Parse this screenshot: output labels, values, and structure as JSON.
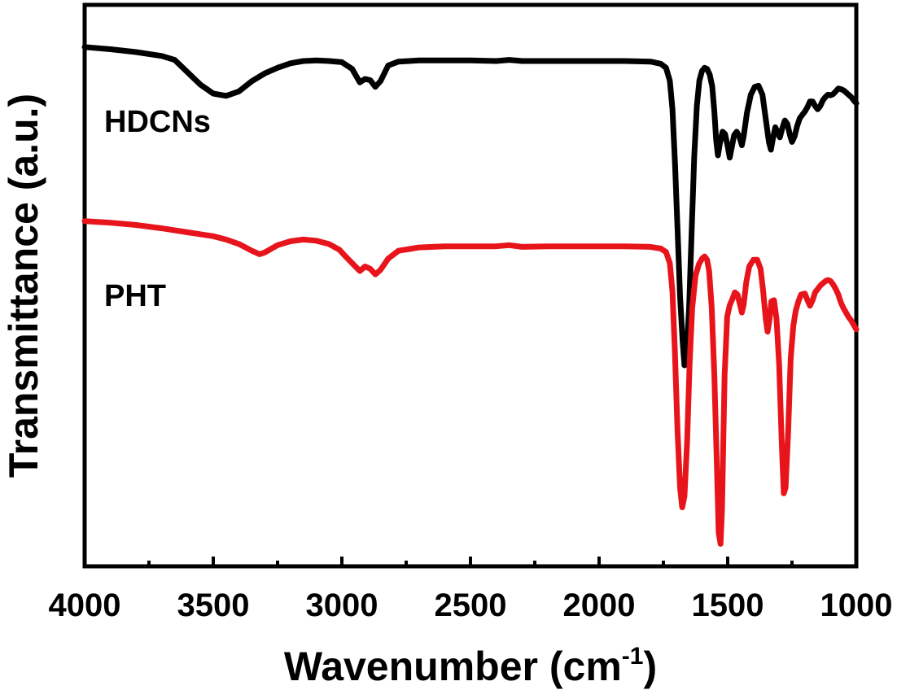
{
  "chart_data": {
    "type": "line",
    "title": "",
    "xlabel": "Wavenumber (cm",
    "xlabel_sup": "-1",
    "xlabel_close": ")",
    "ylabel": "Transmittance (a.u.)",
    "xlim": [
      4000,
      1000
    ],
    "ylim": [
      0,
      100
    ],
    "x_ticks": [
      4000,
      3500,
      3000,
      2500,
      2000,
      1500,
      1000
    ],
    "x_tick_labels": [
      "4000",
      "3500",
      "3000",
      "2500",
      "2000",
      "1500",
      "1000"
    ],
    "y_ticks_shown": false,
    "series": [
      {
        "name": "HDCNs",
        "color": "#000000",
        "points": [
          [
            4000,
            92.5
          ],
          [
            3900,
            92.1
          ],
          [
            3800,
            91.6
          ],
          [
            3700,
            90.9
          ],
          [
            3650,
            90.2
          ],
          [
            3600,
            88.0
          ],
          [
            3550,
            85.8
          ],
          [
            3500,
            84.2
          ],
          [
            3450,
            83.8
          ],
          [
            3400,
            84.6
          ],
          [
            3350,
            86.4
          ],
          [
            3300,
            87.8
          ],
          [
            3250,
            88.8
          ],
          [
            3200,
            89.6
          ],
          [
            3150,
            90.0
          ],
          [
            3100,
            90.1
          ],
          [
            3050,
            90.0
          ],
          [
            3000,
            89.8
          ],
          [
            2960,
            88.6
          ],
          [
            2930,
            86.2
          ],
          [
            2910,
            86.8
          ],
          [
            2890,
            86.6
          ],
          [
            2870,
            85.4
          ],
          [
            2850,
            86.4
          ],
          [
            2820,
            89.2
          ],
          [
            2780,
            89.9
          ],
          [
            2700,
            90.1
          ],
          [
            2600,
            90.1
          ],
          [
            2500,
            90.1
          ],
          [
            2400,
            90.0
          ],
          [
            2350,
            90.2
          ],
          [
            2300,
            90.0
          ],
          [
            2200,
            90.0
          ],
          [
            2100,
            90.0
          ],
          [
            2000,
            90.0
          ],
          [
            1900,
            90.0
          ],
          [
            1800,
            89.9
          ],
          [
            1760,
            89.5
          ],
          [
            1740,
            88.8
          ],
          [
            1725,
            86.5
          ],
          [
            1715,
            81.5
          ],
          [
            1705,
            72.0
          ],
          [
            1695,
            60.0
          ],
          [
            1685,
            48.0
          ],
          [
            1675,
            40.0
          ],
          [
            1668,
            35.8
          ],
          [
            1660,
            37.5
          ],
          [
            1650,
            46.0
          ],
          [
            1640,
            60.0
          ],
          [
            1630,
            73.0
          ],
          [
            1620,
            82.0
          ],
          [
            1610,
            86.5
          ],
          [
            1600,
            88.2
          ],
          [
            1590,
            88.8
          ],
          [
            1580,
            88.6
          ],
          [
            1570,
            87.6
          ],
          [
            1560,
            85.5
          ],
          [
            1552,
            81.0
          ],
          [
            1545,
            76.0
          ],
          [
            1538,
            73.2
          ],
          [
            1530,
            75.4
          ],
          [
            1520,
            77.4
          ],
          [
            1510,
            77.0
          ],
          [
            1500,
            74.8
          ],
          [
            1492,
            72.8
          ],
          [
            1485,
            74.4
          ],
          [
            1475,
            76.8
          ],
          [
            1465,
            77.4
          ],
          [
            1455,
            76.6
          ],
          [
            1445,
            75.0
          ],
          [
            1438,
            76.6
          ],
          [
            1425,
            80.8
          ],
          [
            1410,
            84.0
          ],
          [
            1395,
            85.4
          ],
          [
            1380,
            85.6
          ],
          [
            1365,
            84.0
          ],
          [
            1350,
            79.0
          ],
          [
            1340,
            75.6
          ],
          [
            1332,
            74.2
          ],
          [
            1325,
            76.0
          ],
          [
            1315,
            78.2
          ],
          [
            1305,
            77.2
          ],
          [
            1297,
            76.4
          ],
          [
            1288,
            78.0
          ],
          [
            1278,
            79.4
          ],
          [
            1268,
            78.8
          ],
          [
            1258,
            76.8
          ],
          [
            1250,
            75.6
          ],
          [
            1240,
            76.6
          ],
          [
            1230,
            78.4
          ],
          [
            1220,
            79.8
          ],
          [
            1210,
            80.4
          ],
          [
            1200,
            81.0
          ],
          [
            1190,
            81.8
          ],
          [
            1180,
            82.8
          ],
          [
            1170,
            82.8
          ],
          [
            1160,
            82.0
          ],
          [
            1150,
            81.4
          ],
          [
            1140,
            82.0
          ],
          [
            1130,
            83.0
          ],
          [
            1120,
            83.6
          ],
          [
            1110,
            84.0
          ],
          [
            1100,
            83.9
          ],
          [
            1090,
            84.1
          ],
          [
            1080,
            84.6
          ],
          [
            1070,
            85.1
          ],
          [
            1060,
            85.0
          ],
          [
            1050,
            84.8
          ],
          [
            1040,
            84.4
          ],
          [
            1030,
            84.0
          ],
          [
            1020,
            83.6
          ],
          [
            1010,
            83.0
          ],
          [
            1000,
            82.5
          ]
        ]
      },
      {
        "name": "PHT",
        "color": "#e8141b",
        "points": [
          [
            4000,
            61.5
          ],
          [
            3900,
            61.2
          ],
          [
            3800,
            60.8
          ],
          [
            3700,
            60.2
          ],
          [
            3600,
            59.5
          ],
          [
            3500,
            58.8
          ],
          [
            3450,
            58.2
          ],
          [
            3400,
            57.4
          ],
          [
            3350,
            56.2
          ],
          [
            3320,
            55.6
          ],
          [
            3300,
            55.9
          ],
          [
            3250,
            57.2
          ],
          [
            3200,
            57.9
          ],
          [
            3150,
            58.2
          ],
          [
            3100,
            58.0
          ],
          [
            3050,
            57.4
          ],
          [
            3010,
            56.4
          ],
          [
            2990,
            55.4
          ],
          [
            2960,
            54.0
          ],
          [
            2930,
            52.6
          ],
          [
            2910,
            53.4
          ],
          [
            2890,
            53.0
          ],
          [
            2870,
            52.0
          ],
          [
            2850,
            52.8
          ],
          [
            2820,
            54.8
          ],
          [
            2780,
            56.2
          ],
          [
            2700,
            56.8
          ],
          [
            2600,
            57.0
          ],
          [
            2500,
            57.0
          ],
          [
            2400,
            57.0
          ],
          [
            2350,
            57.2
          ],
          [
            2300,
            56.9
          ],
          [
            2200,
            57.0
          ],
          [
            2100,
            57.0
          ],
          [
            2000,
            57.0
          ],
          [
            1900,
            57.0
          ],
          [
            1800,
            56.9
          ],
          [
            1760,
            56.6
          ],
          [
            1740,
            56.0
          ],
          [
            1725,
            54.0
          ],
          [
            1715,
            49.0
          ],
          [
            1705,
            38.0
          ],
          [
            1695,
            24.0
          ],
          [
            1685,
            14.0
          ],
          [
            1677,
            10.5
          ],
          [
            1668,
            12.5
          ],
          [
            1658,
            22.0
          ],
          [
            1648,
            36.0
          ],
          [
            1638,
            46.0
          ],
          [
            1625,
            51.8
          ],
          [
            1612,
            53.8
          ],
          [
            1600,
            54.8
          ],
          [
            1590,
            55.2
          ],
          [
            1580,
            54.6
          ],
          [
            1572,
            52.6
          ],
          [
            1562,
            46.0
          ],
          [
            1552,
            34.0
          ],
          [
            1542,
            18.0
          ],
          [
            1535,
            6.0
          ],
          [
            1528,
            4.0
          ],
          [
            1522,
            10.0
          ],
          [
            1512,
            34.0
          ],
          [
            1502,
            44.5
          ],
          [
            1492,
            46.5
          ],
          [
            1482,
            47.6
          ],
          [
            1472,
            48.8
          ],
          [
            1462,
            48.4
          ],
          [
            1452,
            46.6
          ],
          [
            1445,
            45.2
          ],
          [
            1438,
            46.6
          ],
          [
            1428,
            50.6
          ],
          [
            1416,
            53.4
          ],
          [
            1400,
            54.6
          ],
          [
            1385,
            54.6
          ],
          [
            1372,
            53.0
          ],
          [
            1362,
            49.0
          ],
          [
            1352,
            44.0
          ],
          [
            1345,
            41.8
          ],
          [
            1338,
            43.8
          ],
          [
            1330,
            47.2
          ],
          [
            1320,
            47.4
          ],
          [
            1310,
            44.0
          ],
          [
            1300,
            36.0
          ],
          [
            1290,
            22.0
          ],
          [
            1282,
            13.0
          ],
          [
            1275,
            14.0
          ],
          [
            1265,
            24.0
          ],
          [
            1255,
            37.0
          ],
          [
            1245,
            42.8
          ],
          [
            1235,
            45.6
          ],
          [
            1225,
            47.2
          ],
          [
            1215,
            48.4
          ],
          [
            1200,
            48.6
          ],
          [
            1190,
            47.4
          ],
          [
            1180,
            46.4
          ],
          [
            1170,
            47.4
          ],
          [
            1160,
            48.8
          ],
          [
            1150,
            49.4
          ],
          [
            1140,
            50.0
          ],
          [
            1130,
            50.4
          ],
          [
            1120,
            50.8
          ],
          [
            1110,
            51.0
          ],
          [
            1100,
            50.8
          ],
          [
            1090,
            50.2
          ],
          [
            1080,
            49.4
          ],
          [
            1070,
            48.4
          ],
          [
            1060,
            47.0
          ],
          [
            1050,
            46.0
          ],
          [
            1040,
            45.2
          ],
          [
            1030,
            44.4
          ],
          [
            1020,
            43.8
          ],
          [
            1010,
            43.0
          ],
          [
            1000,
            42.2
          ]
        ]
      }
    ]
  }
}
